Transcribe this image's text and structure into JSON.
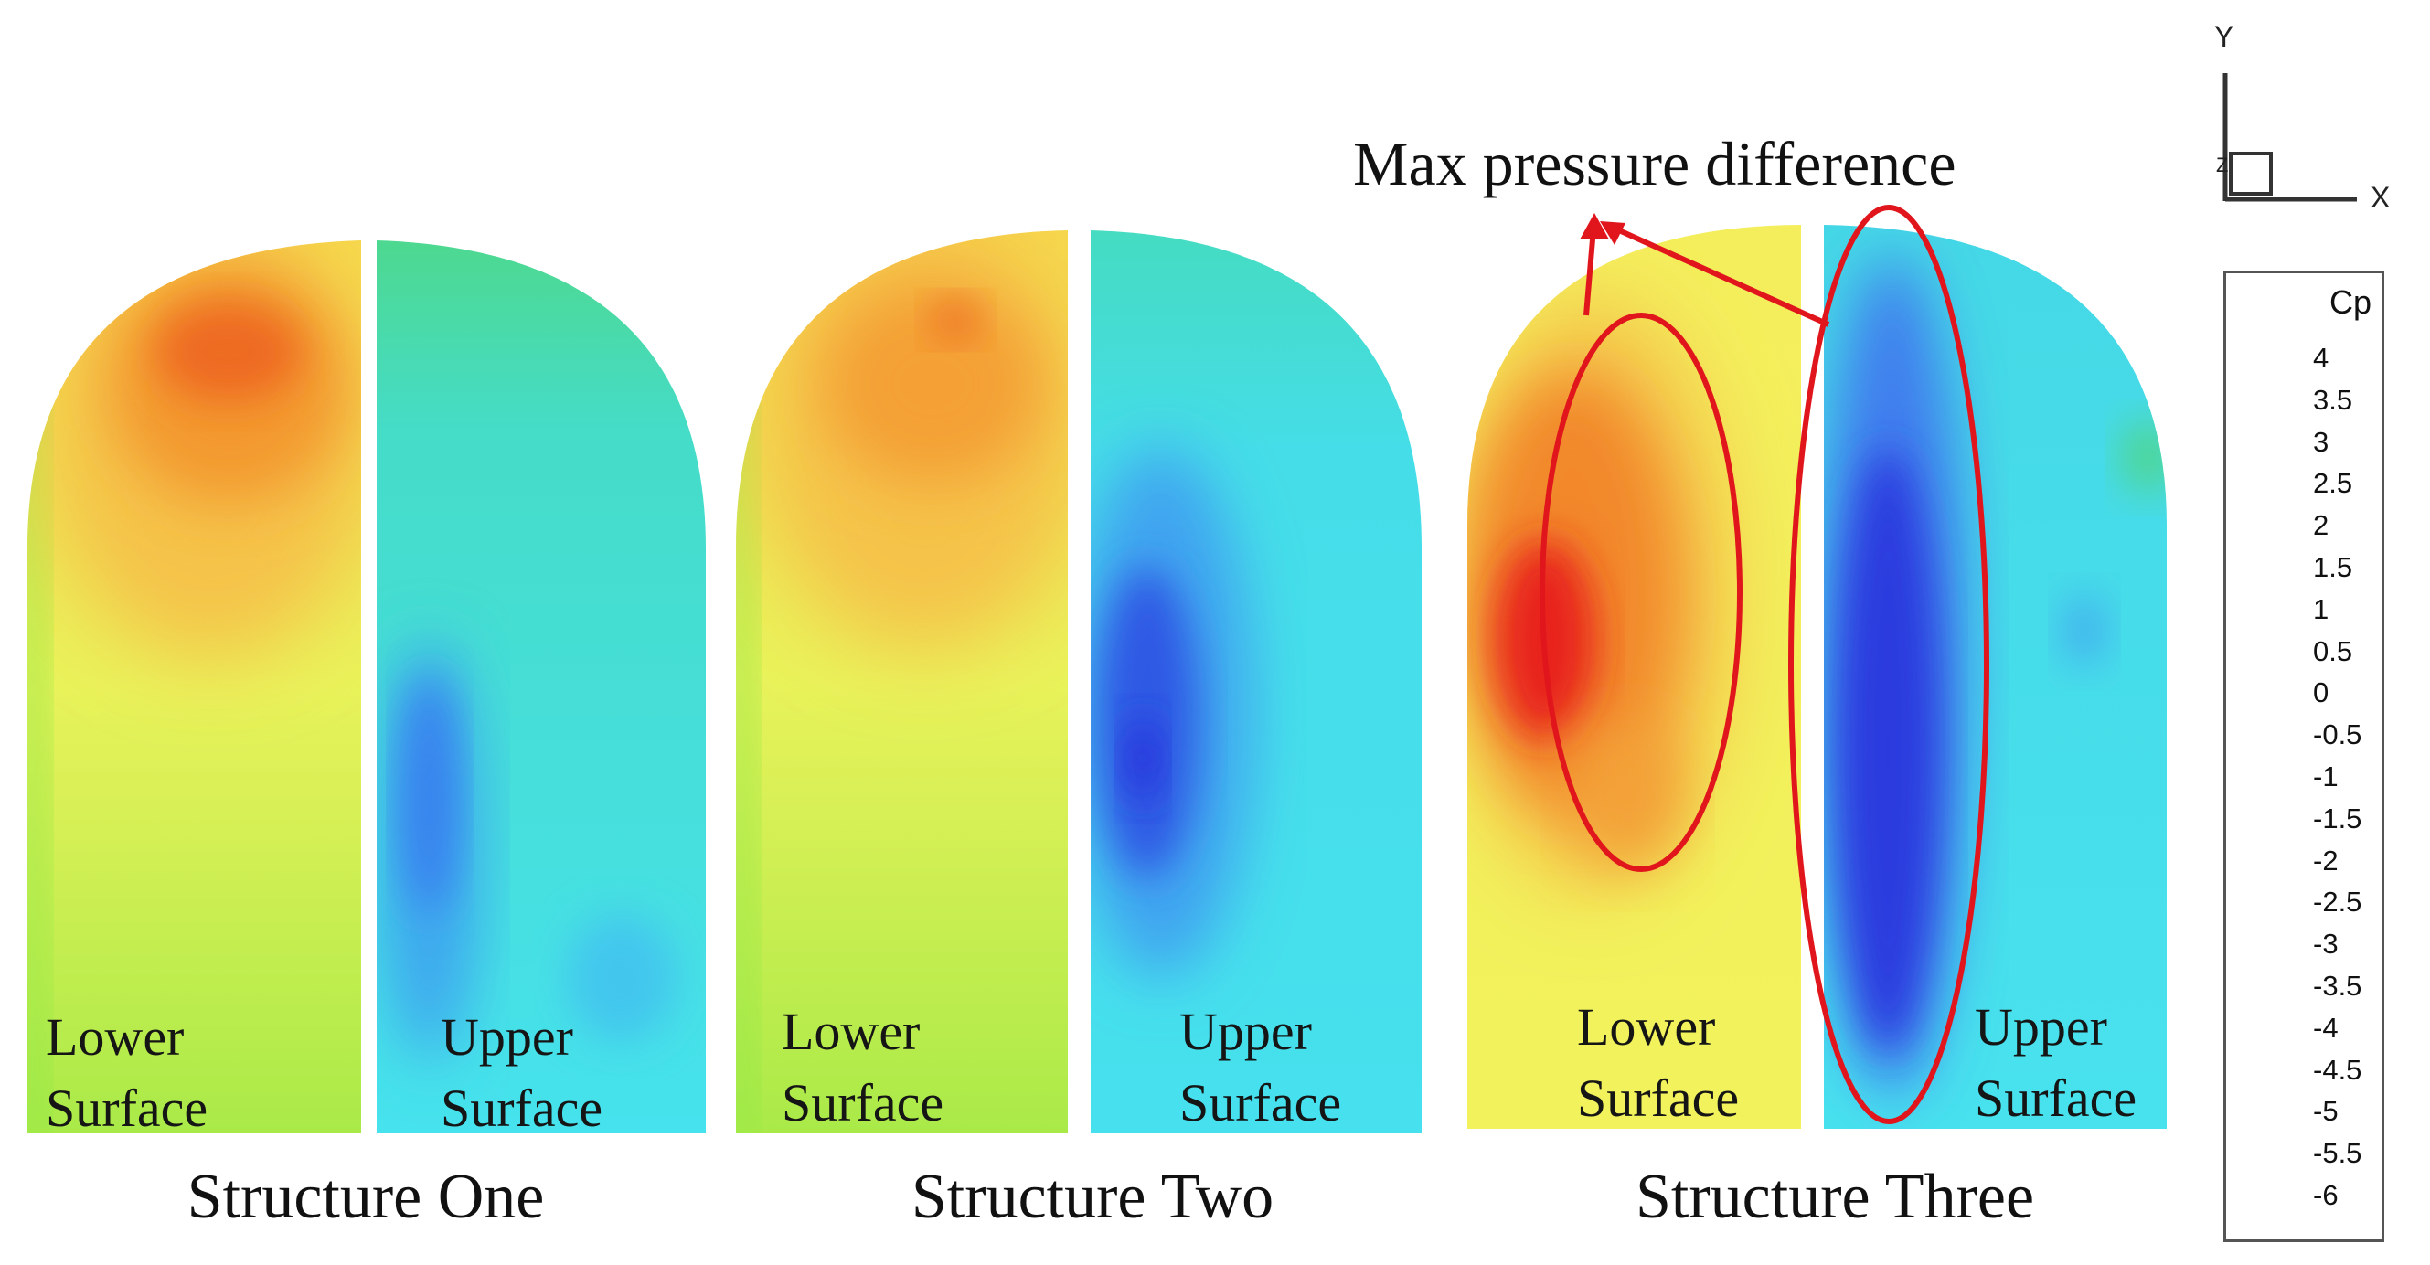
{
  "annotation": {
    "title": "Max pressure difference"
  },
  "axes": {
    "y": "Y",
    "x": "X",
    "z": "Z"
  },
  "structures": [
    {
      "caption": "Structure One",
      "lower_label": [
        "Lower",
        "Surface"
      ],
      "upper_label": [
        "Upper",
        "Surface"
      ]
    },
    {
      "caption": "Structure Two",
      "lower_label": [
        "Lower",
        "Surface"
      ],
      "upper_label": [
        "Upper",
        "Surface"
      ]
    },
    {
      "caption": "Structure Three",
      "lower_label": [
        "Lower",
        "Surface"
      ],
      "upper_label": [
        "Upper",
        "Surface"
      ]
    }
  ],
  "legend": {
    "title": "Cp",
    "ticks": [
      "4",
      "3.5",
      "3",
      "2.5",
      "2",
      "1.5",
      "1",
      "0.5",
      "0",
      "-0.5",
      "-1",
      "-1.5",
      "-2",
      "-2.5",
      "-3",
      "-3.5",
      "-4",
      "-4.5",
      "-5",
      "-5.5",
      "-6"
    ],
    "colors": [
      "#e61818",
      "#ee3a1a",
      "#f2641e",
      "#f4872a",
      "#f5a83a",
      "#f6c84a",
      "#f4e65a",
      "#e8f65c",
      "#c8f450",
      "#9ceb46",
      "#6fe03e",
      "#4ed848",
      "#44d36a",
      "#3fd08e",
      "#3cd1b2",
      "#3cd9d0",
      "#3fe0ea",
      "#45c8ef",
      "#3f9ff0",
      "#3270ea",
      "#2a46e0",
      "#1e24d8"
    ]
  },
  "highlight_color": "#e0161c"
}
